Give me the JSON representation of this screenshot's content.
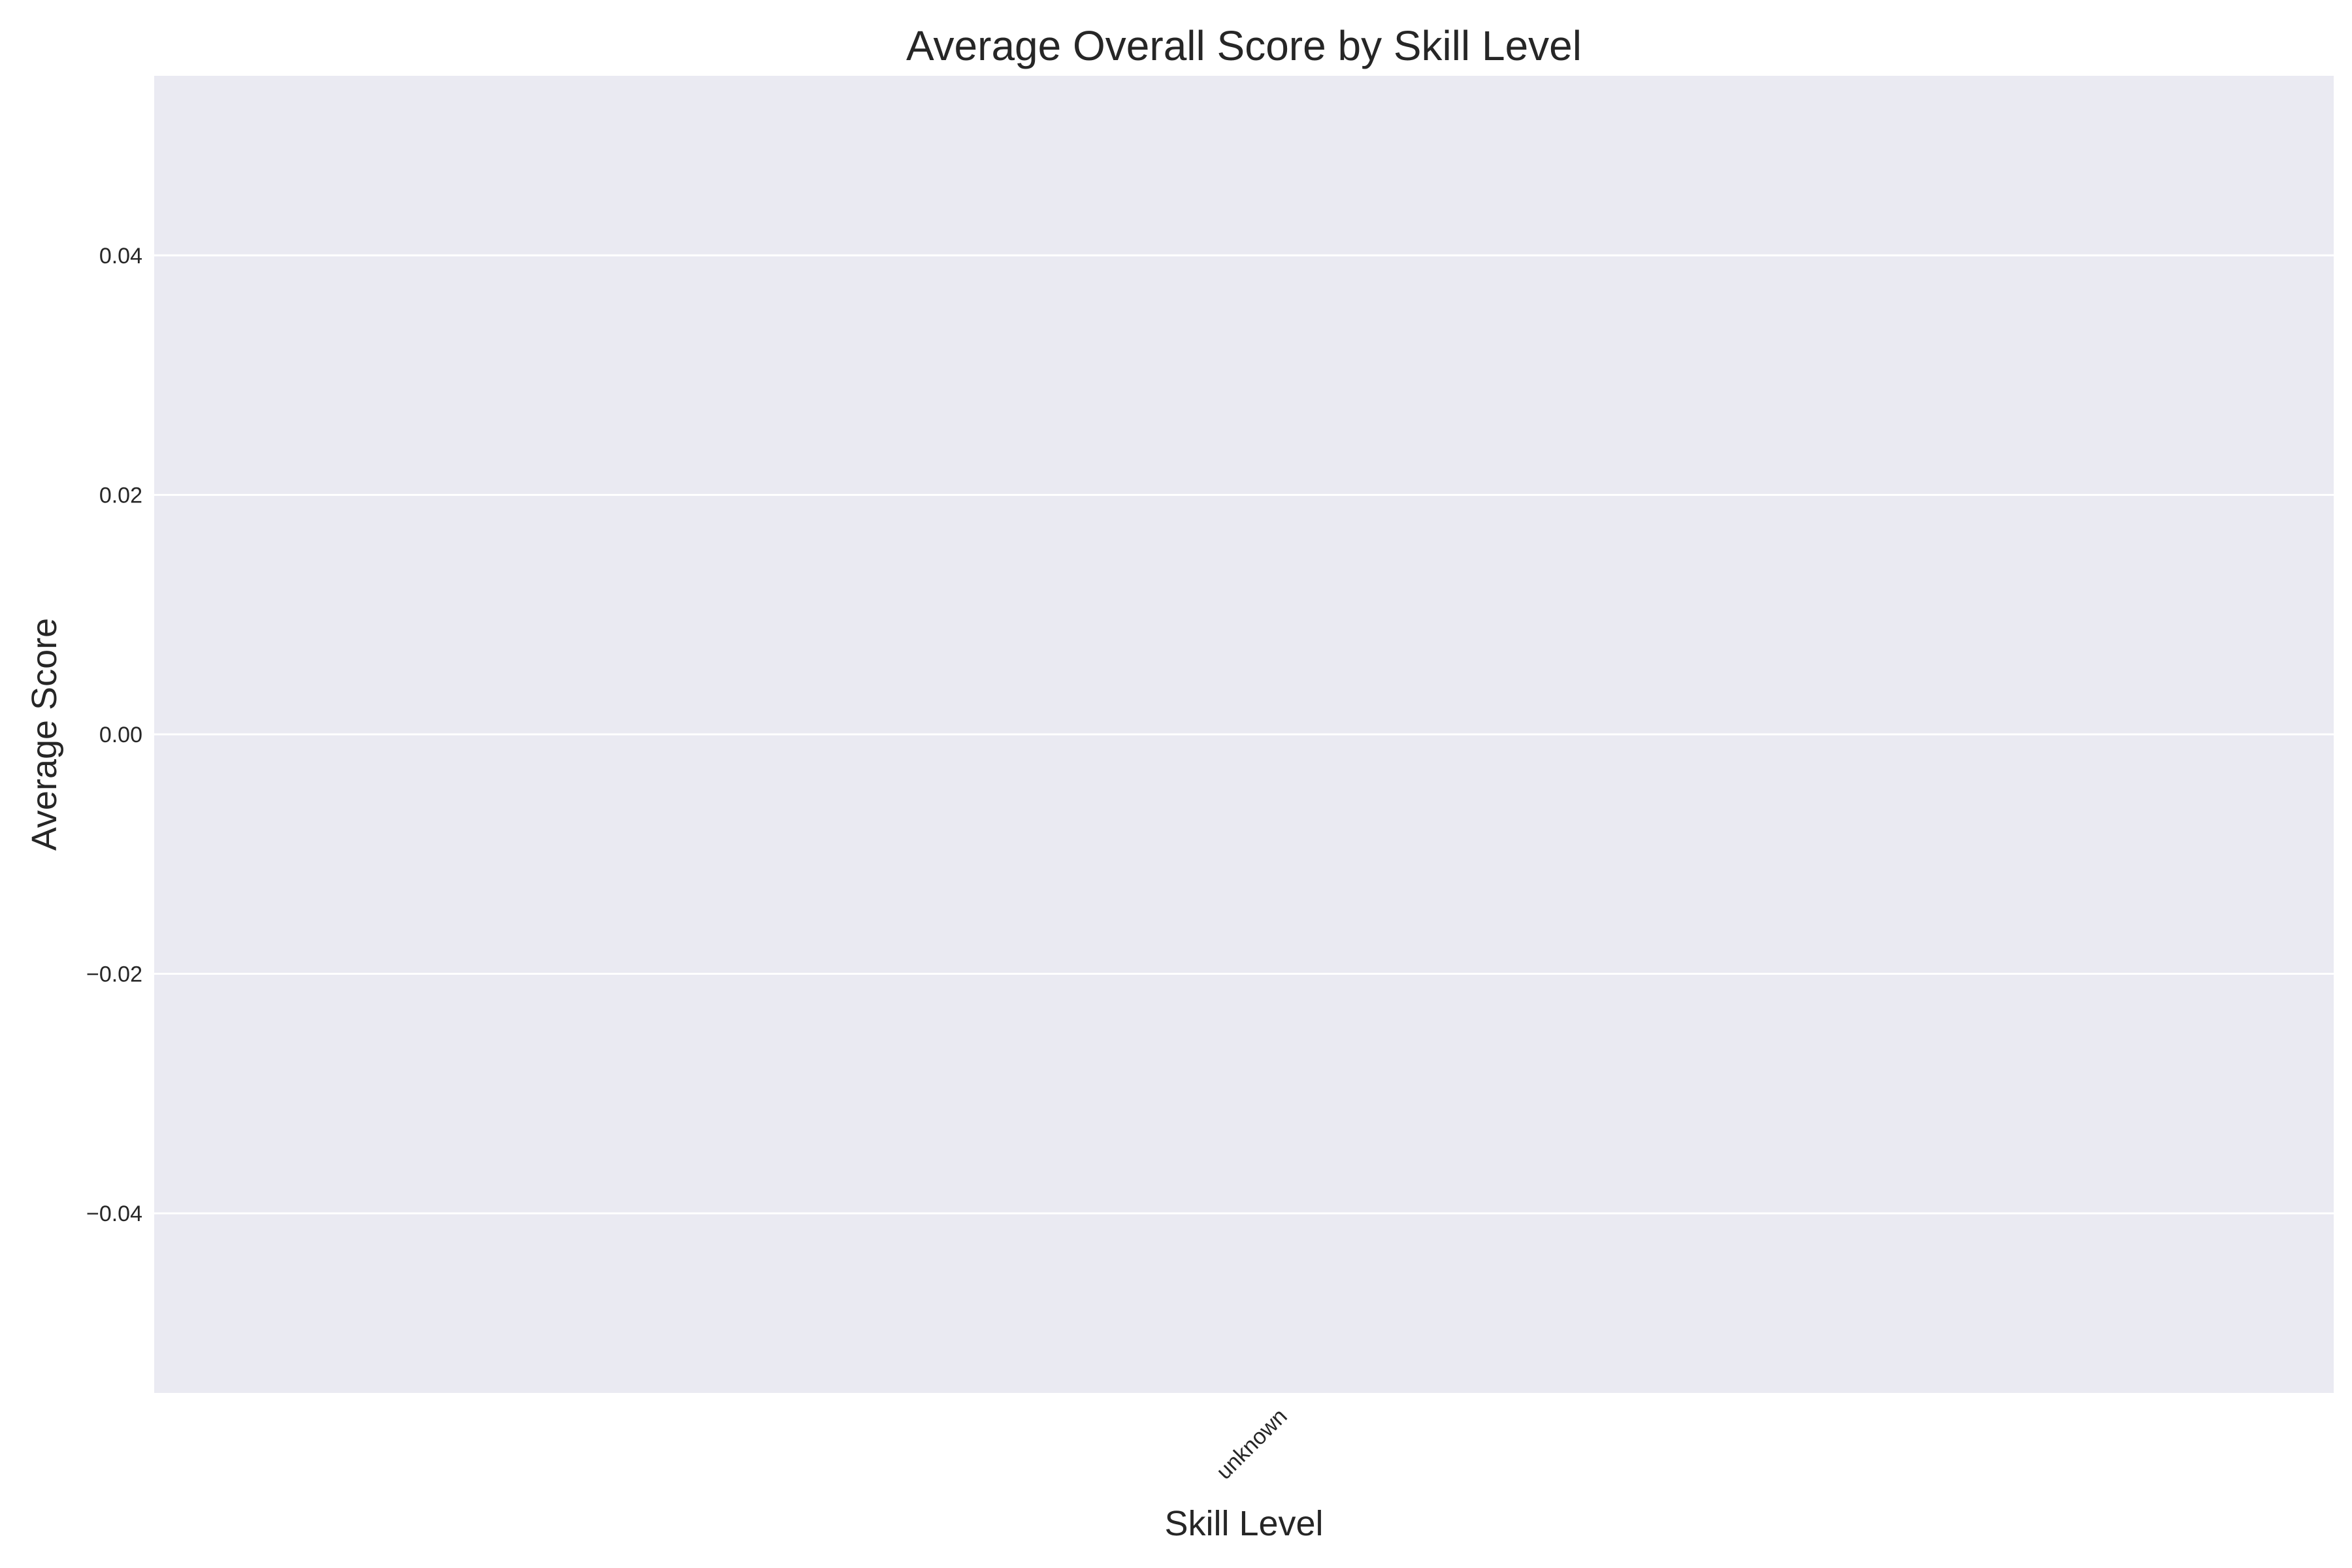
{
  "chart_data": {
    "type": "bar",
    "title": "Average Overall Score by Skill Level",
    "xlabel": "Skill Level",
    "ylabel": "Average Score",
    "categories": [
      "unknown"
    ],
    "values": [
      0
    ],
    "ylim": [
      -0.055,
      0.055
    ],
    "yticks": [
      0.04,
      0.02,
      0.0,
      -0.02,
      -0.04
    ],
    "ytick_labels": [
      "0.04",
      "0.02",
      "0.00",
      "−0.02",
      "−0.04"
    ],
    "xtick_rotation_deg": 45,
    "grid": true,
    "legend": "none",
    "colors": {
      "plot_background": "#eaeaf2",
      "gridline": "#ffffff",
      "text": "#262626"
    }
  }
}
